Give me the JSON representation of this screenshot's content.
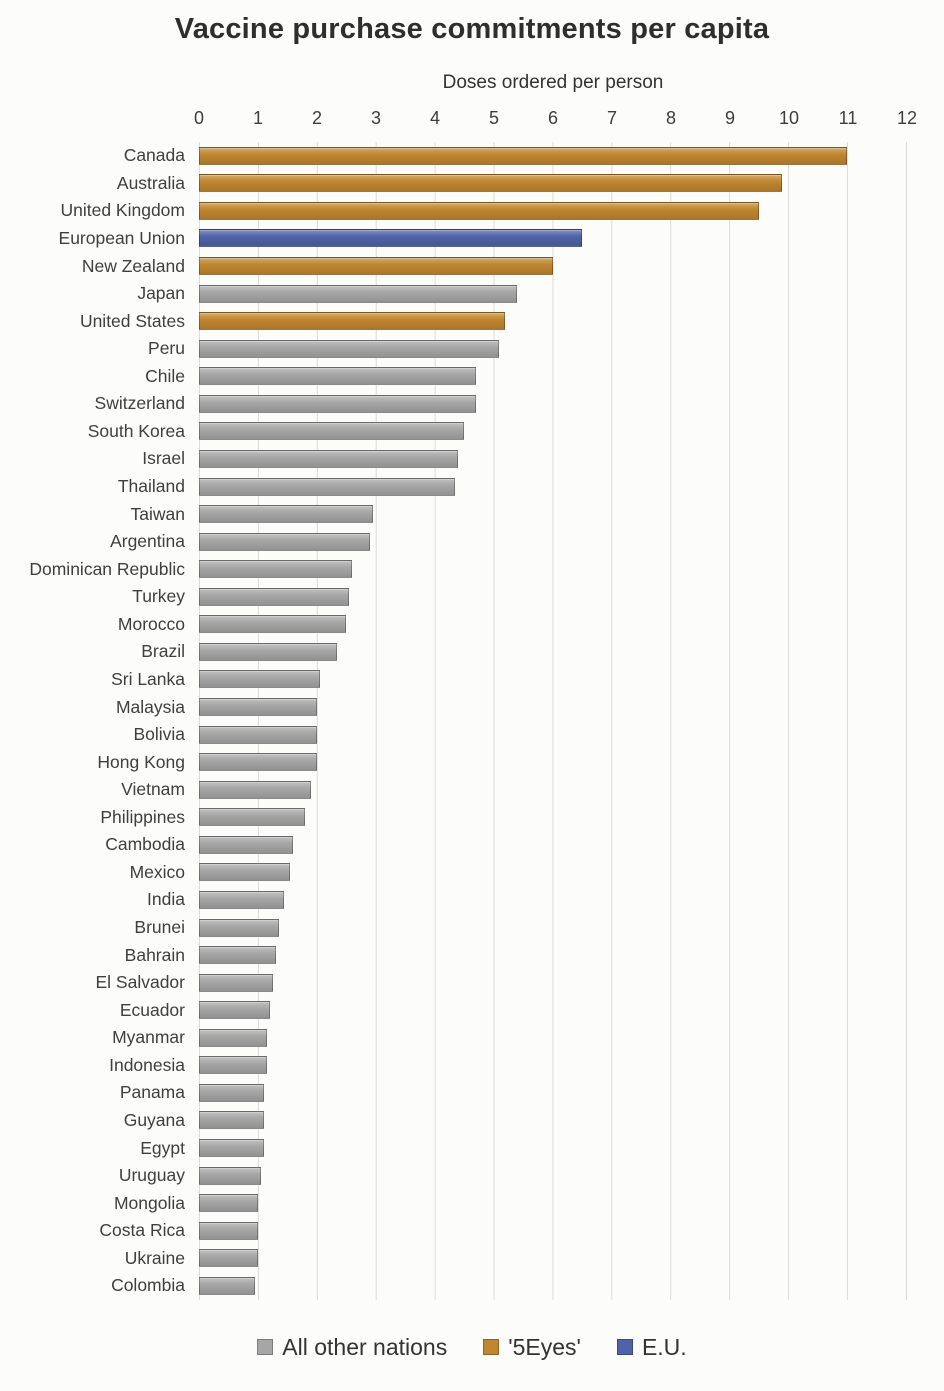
{
  "chart_data": {
    "type": "bar",
    "orientation": "horizontal",
    "title": "Vaccine purchase commitments per capita",
    "xlabel": "Doses ordered per person",
    "xlim": [
      0,
      12
    ],
    "ticks": [
      0,
      1,
      2,
      3,
      4,
      5,
      6,
      7,
      8,
      9,
      10,
      11,
      12
    ],
    "grid": true,
    "legend_position": "bottom",
    "categories": [
      "Canada",
      "Australia",
      "United Kingdom",
      "European Union",
      "New Zealand",
      "Japan",
      "United States",
      "Peru",
      "Chile",
      "Switzerland",
      "South Korea",
      "Israel",
      "Thailand",
      "Taiwan",
      "Argentina",
      "Dominican Republic",
      "Turkey",
      "Morocco",
      "Brazil",
      "Sri Lanka",
      "Malaysia",
      "Bolivia",
      "Hong Kong",
      "Vietnam",
      "Philippines",
      "Cambodia",
      "Mexico",
      "India",
      "Brunei",
      "Bahrain",
      "El Salvador",
      "Ecuador",
      "Myanmar",
      "Indonesia",
      "Panama",
      "Guyana",
      "Egypt",
      "Uruguay",
      "Mongolia",
      "Costa Rica",
      "Ukraine",
      "Colombia"
    ],
    "values": [
      11.0,
      9.9,
      9.5,
      6.5,
      6.0,
      5.4,
      5.2,
      5.1,
      4.7,
      4.7,
      4.5,
      4.4,
      4.35,
      2.95,
      2.9,
      2.6,
      2.55,
      2.5,
      2.35,
      2.05,
      2.0,
      2.0,
      2.0,
      1.9,
      1.8,
      1.6,
      1.55,
      1.45,
      1.35,
      1.3,
      1.25,
      1.2,
      1.15,
      1.15,
      1.1,
      1.1,
      1.1,
      1.05,
      1.0,
      1.0,
      1.0,
      0.95
    ],
    "groups": [
      "5eyes",
      "5eyes",
      "5eyes",
      "eu",
      "5eyes",
      "other",
      "5eyes",
      "other",
      "other",
      "other",
      "other",
      "other",
      "other",
      "other",
      "other",
      "other",
      "other",
      "other",
      "other",
      "other",
      "other",
      "other",
      "other",
      "other",
      "other",
      "other",
      "other",
      "other",
      "other",
      "other",
      "other",
      "other",
      "other",
      "other",
      "other",
      "other",
      "other",
      "other",
      "other",
      "other",
      "other",
      "other"
    ],
    "colors": {
      "other": "#A6A6A6",
      "5eyes": "#C0862F",
      "eu": "#4F63A8"
    },
    "legend": [
      {
        "label": "All other nations",
        "group": "other"
      },
      {
        "label": "'5Eyes'",
        "group": "5eyes"
      },
      {
        "label": "E.U.",
        "group": "eu"
      }
    ]
  }
}
